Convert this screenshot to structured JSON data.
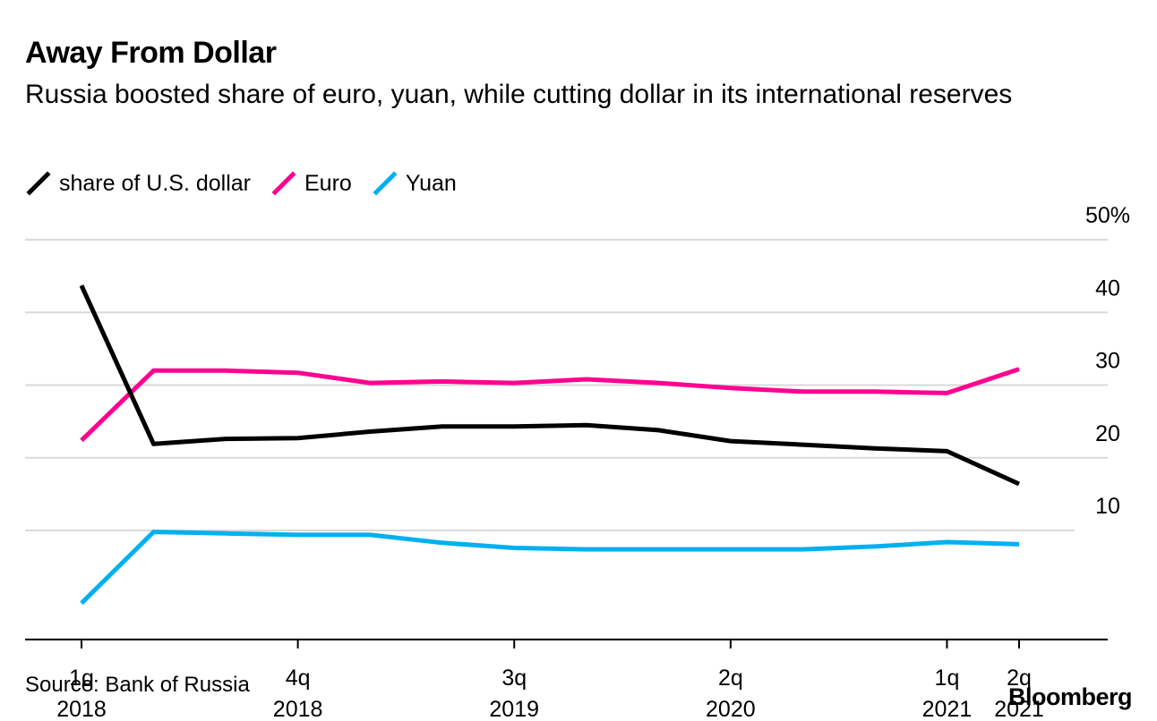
{
  "chart_data": {
    "type": "line",
    "title": "Away From Dollar",
    "subtitle": "Russia boosted share of euro, yuan, while cutting dollar in its international reserves",
    "x": [
      "1q 2018",
      "2q 2018",
      "3q 2018",
      "4q 2018",
      "1q 2019",
      "2q 2019",
      "3q 2019",
      "4q 2019",
      "1q 2020",
      "2q 2020",
      "3q 2020",
      "4q 2020",
      "1q 2021",
      "2q 2021"
    ],
    "x_ticks": [
      {
        "index": 0,
        "line1": "1q",
        "line2": "2018"
      },
      {
        "index": 3,
        "line1": "4q",
        "line2": "2018"
      },
      {
        "index": 6,
        "line1": "3q",
        "line2": "2019"
      },
      {
        "index": 9,
        "line1": "2q",
        "line2": "2020"
      },
      {
        "index": 12,
        "line1": "1q",
        "line2": "2021"
      },
      {
        "index": 13,
        "line1": "2q",
        "line2": "2021"
      }
    ],
    "series": [
      {
        "name": "share of U.S. dollar",
        "color": "#000000",
        "values": [
          43.7,
          21.9,
          22.6,
          22.7,
          23.6,
          24.3,
          24.3,
          24.5,
          23.8,
          22.3,
          21.8,
          21.3,
          20.9,
          16.4
        ]
      },
      {
        "name": "Euro",
        "color": "#ff0090",
        "values": [
          22.4,
          32.0,
          32.0,
          31.7,
          30.3,
          30.5,
          30.3,
          30.8,
          30.3,
          29.6,
          29.1,
          29.1,
          28.9,
          32.2
        ]
      },
      {
        "name": "Yuan",
        "color": "#00b0f0",
        "values": [
          0.0,
          9.8,
          9.6,
          9.4,
          9.4,
          8.3,
          7.6,
          7.4,
          7.4,
          7.4,
          7.4,
          7.8,
          8.4,
          8.1
        ]
      }
    ],
    "ylim": [
      -5,
      50
    ],
    "y_ticks": [
      {
        "value": 50,
        "label": "50%"
      },
      {
        "value": 40,
        "label": "40"
      },
      {
        "value": 30,
        "label": "30"
      },
      {
        "value": 20,
        "label": "20"
      },
      {
        "value": 10,
        "label": "10"
      }
    ],
    "grid": true,
    "legend_position": "top-left"
  },
  "source": "Source: Bank of Russia",
  "brand": "Bloomberg"
}
